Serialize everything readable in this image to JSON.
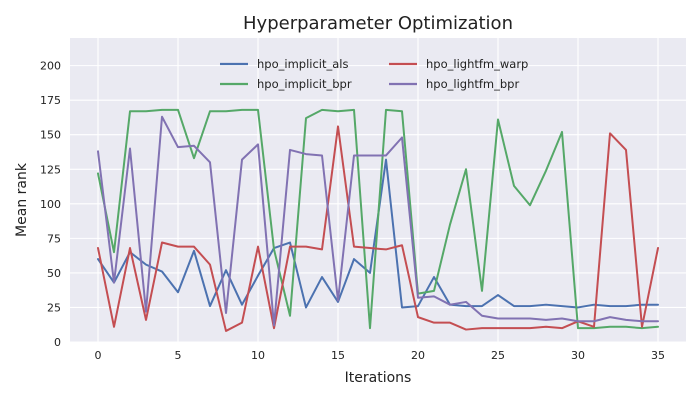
{
  "chart_data": {
    "type": "line",
    "title": "Hyperparameter Optimization",
    "xlabel": "Iterations",
    "ylabel": "Mean rank",
    "xlim": [
      -1.75,
      36.75
    ],
    "ylim": [
      0,
      220
    ],
    "xticks": [
      0,
      5,
      10,
      15,
      20,
      25,
      30,
      35
    ],
    "yticks": [
      0,
      25,
      50,
      75,
      100,
      125,
      150,
      175,
      200
    ],
    "grid": true,
    "legend_position": "top-center",
    "x": [
      0,
      1,
      2,
      3,
      4,
      5,
      6,
      7,
      8,
      9,
      10,
      11,
      12,
      13,
      14,
      15,
      16,
      17,
      18,
      19,
      20,
      21,
      22,
      23,
      24,
      25,
      26,
      27,
      28,
      29,
      30,
      31,
      32,
      33,
      34,
      35
    ],
    "series": [
      {
        "name": "hpo_implicit_als",
        "color": "#4c72b0",
        "values": [
          60,
          43,
          65,
          56,
          51,
          36,
          66,
          26,
          52,
          27,
          48,
          68,
          72,
          25,
          47,
          29,
          60,
          50,
          132,
          25,
          26,
          47,
          27,
          26,
          26,
          34,
          26,
          26,
          27,
          26,
          25,
          27,
          26,
          26,
          27,
          27
        ]
      },
      {
        "name": "hpo_implicit_bpr",
        "color": "#55a868",
        "values": [
          122,
          65,
          167,
          167,
          168,
          168,
          133,
          167,
          167,
          168,
          168,
          67,
          19,
          162,
          168,
          167,
          168,
          10,
          168,
          167,
          35,
          37,
          85,
          125,
          37,
          161,
          113,
          99,
          124,
          152,
          10,
          10,
          11,
          11,
          10,
          11
        ]
      },
      {
        "name": "hpo_lightfm_warp",
        "color": "#c44e52",
        "values": [
          68,
          11,
          68,
          16,
          72,
          69,
          69,
          56,
          8,
          14,
          69,
          10,
          69,
          69,
          67,
          156,
          69,
          68,
          67,
          70,
          18,
          14,
          14,
          9,
          10,
          10,
          10,
          10,
          11,
          10,
          15,
          11,
          151,
          139,
          11,
          68
        ]
      },
      {
        "name": "hpo_lightfm_bpr",
        "color": "#8172b2",
        "values": [
          138,
          43,
          140,
          22,
          163,
          141,
          142,
          130,
          21,
          132,
          143,
          12,
          139,
          136,
          135,
          30,
          135,
          135,
          135,
          148,
          32,
          33,
          27,
          29,
          19,
          17,
          17,
          17,
          16,
          17,
          15,
          15,
          18,
          16,
          15,
          15
        ]
      }
    ]
  }
}
